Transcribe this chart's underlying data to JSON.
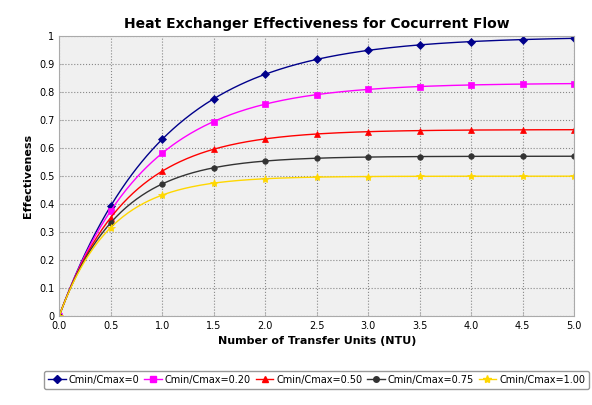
{
  "title": "Heat Exchanger Effectiveness for Cocurrent Flow",
  "xlabel": "Number of Transfer Units (NTU)",
  "ylabel": "Effectiveness",
  "xlim": [
    0,
    5.0
  ],
  "ylim": [
    0,
    1.0
  ],
  "xticks": [
    0.0,
    0.5,
    1.0,
    1.5,
    2.0,
    2.5,
    3.0,
    3.5,
    4.0,
    4.5,
    5.0
  ],
  "yticks": [
    0,
    0.1,
    0.2,
    0.3,
    0.4,
    0.5,
    0.6,
    0.7,
    0.8,
    0.9,
    1.0
  ],
  "ytick_labels": [
    "0",
    "0.1",
    "0.2",
    "0.3",
    "0.4",
    "0.5",
    "0.6",
    "0.7",
    "0.8",
    "0.9",
    "1"
  ],
  "xtick_labels": [
    "0.0",
    "0.5",
    "1.0",
    "1.5",
    "2.0",
    "2.5",
    "3.0",
    "3.5",
    "4.0",
    "4.5",
    "5.0"
  ],
  "series": [
    {
      "label": "Cmin/Cmax=0",
      "C": 0.0,
      "color": "#00008B",
      "marker": "D",
      "markersize": 4
    },
    {
      "label": "Cmin/Cmax=0.20",
      "C": 0.2,
      "color": "#FF00FF",
      "marker": "s",
      "markersize": 4
    },
    {
      "label": "Cmin/Cmax=0.50",
      "C": 0.5,
      "color": "#FF0000",
      "marker": "^",
      "markersize": 4
    },
    {
      "label": "Cmin/Cmax=0.75",
      "C": 0.75,
      "color": "#333333",
      "marker": "o",
      "markersize": 4
    },
    {
      "label": "Cmin/Cmax=1.00",
      "C": 1.0,
      "color": "#FFD700",
      "marker": "*",
      "markersize": 6
    }
  ],
  "ntu_markers": [
    0.0,
    0.5,
    1.0,
    1.5,
    2.0,
    2.5,
    3.0,
    3.5,
    4.0,
    4.5,
    5.0
  ],
  "background_color": "#FFFFFF",
  "plot_bg_color": "#F0F0F0",
  "grid_color": "#888888",
  "legend_fontsize": 7,
  "title_fontsize": 10,
  "axis_label_fontsize": 8,
  "tick_fontsize": 7
}
